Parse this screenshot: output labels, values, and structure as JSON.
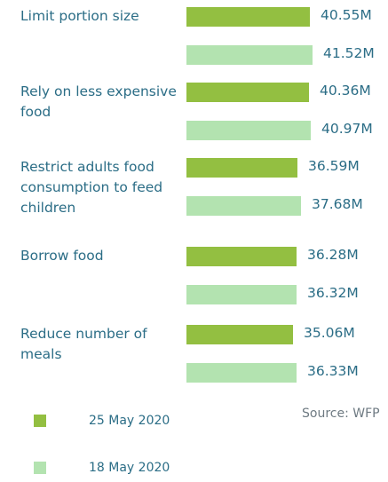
{
  "chart_data": {
    "type": "bar",
    "orientation": "horizontal",
    "categories": [
      "Limit portion size",
      "Rely on less expensive food",
      "Restrict adults food consumption to feed children",
      "Borrow food",
      "Reduce number of meals"
    ],
    "series": [
      {
        "name": "25 May 2020",
        "color": "#93bf41",
        "values": [
          40.55,
          40.36,
          36.59,
          36.28,
          35.06
        ],
        "labels": [
          "40.55M",
          "40.36M",
          "36.59M",
          "36.28M",
          "35.06M"
        ]
      },
      {
        "name": "18 May 2020",
        "color": "#b3e3b0",
        "values": [
          41.52,
          40.97,
          37.68,
          36.32,
          36.33
        ],
        "labels": [
          "41.52M",
          "40.97M",
          "37.68M",
          "36.32M",
          "36.33M"
        ]
      }
    ],
    "unit": "M",
    "legend": "bottom-left",
    "grid": false
  },
  "source": "Source: WFP"
}
